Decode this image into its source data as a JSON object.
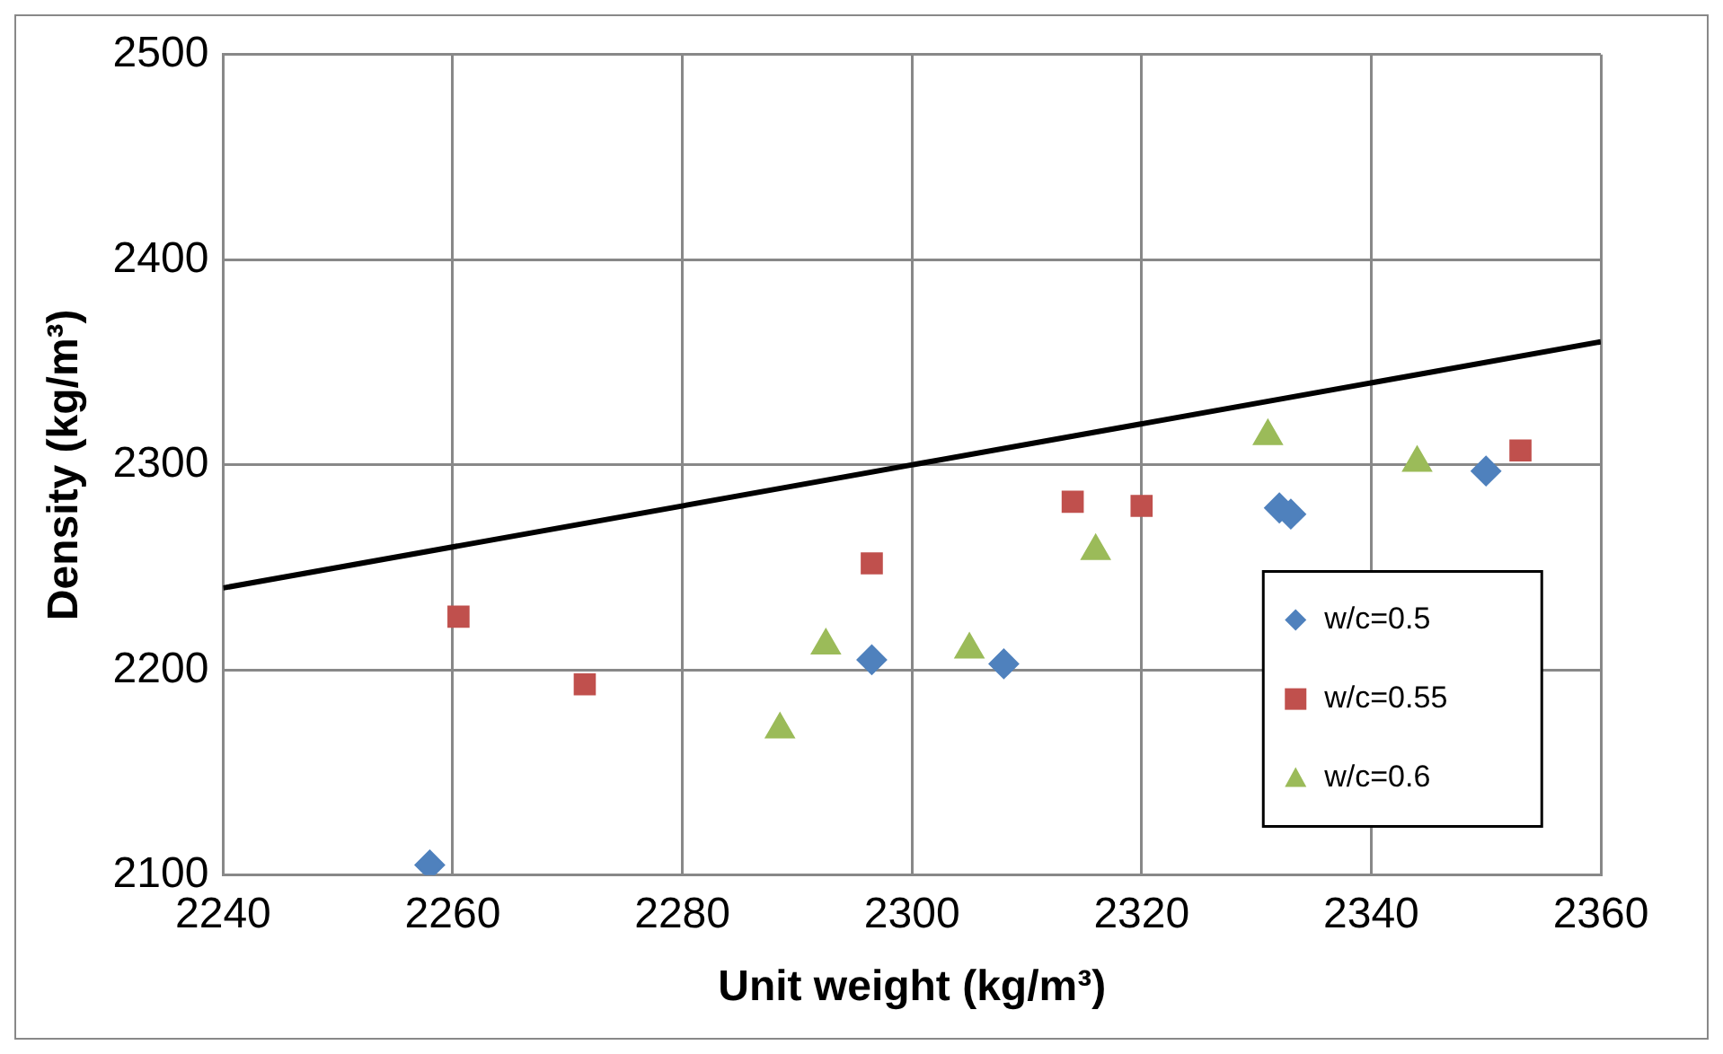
{
  "chart_data": {
    "type": "scatter",
    "xlabel": "Unit weight (kg/m³)",
    "ylabel": "Density (kg/m³)",
    "xlim": [
      2240,
      2360
    ],
    "xticks": [
      2240,
      2260,
      2280,
      2300,
      2320,
      2340,
      2360
    ],
    "ylim": [
      2100,
      2500
    ],
    "yticks": [
      2100,
      2200,
      2300,
      2400,
      2500
    ],
    "grid": true,
    "legend": "right",
    "series": [
      {
        "name": "w/c=0.5",
        "color": "#4f81bd",
        "marker": "diamond",
        "x": [
          2258,
          2296.5,
          2308,
          2332,
          2333,
          2350
        ],
        "values": [
          2105,
          2205,
          2203,
          2279,
          2276,
          2297
        ]
      },
      {
        "name": "w/c=0.55",
        "color": "#c0504d",
        "marker": "square",
        "x": [
          2260.5,
          2271.5,
          2296.5,
          2314,
          2320,
          2353
        ],
        "values": [
          2226,
          2193,
          2252,
          2282,
          2280,
          2307
        ]
      },
      {
        "name": "w/c=0.6",
        "color": "#9bbb59",
        "marker": "triangle",
        "x": [
          2288.5,
          2292.5,
          2305,
          2316,
          2331,
          2344
        ],
        "values": [
          2171,
          2212,
          2210,
          2258,
          2314,
          2301
        ]
      },
      {
        "type": "line",
        "color": "#000000",
        "marker": "none",
        "x": [
          2240,
          2360
        ],
        "values": [
          2240,
          2360
        ]
      }
    ]
  }
}
